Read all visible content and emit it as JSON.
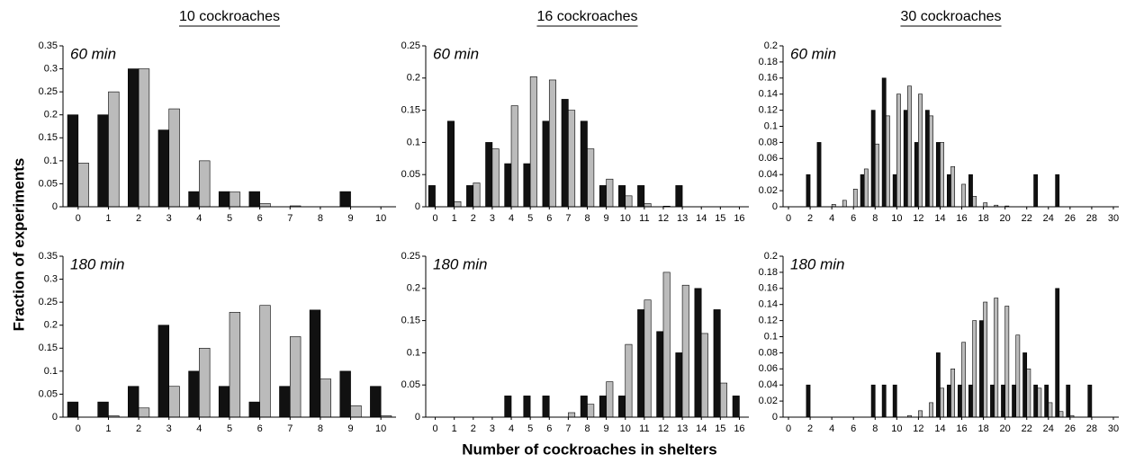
{
  "ylabel": "Fraction of experiments",
  "xlabel": "Number of cockroaches in shelters",
  "chart_data": [
    {
      "type": "bar",
      "title": "10 cockroaches",
      "annotation": "60 min",
      "x": [
        0,
        1,
        2,
        3,
        4,
        5,
        6,
        7,
        8,
        9,
        10
      ],
      "xlim": [
        -0.5,
        10.5
      ],
      "xticks": [
        0,
        1,
        2,
        3,
        4,
        5,
        6,
        7,
        8,
        9,
        10
      ],
      "ylim": [
        0,
        0.35
      ],
      "yticks": [
        0,
        0.05,
        0.1,
        0.15,
        0.2,
        0.25,
        0.3,
        0.35
      ],
      "series": [
        {
          "color": "#111111",
          "values": [
            0.2,
            0.2,
            0.3,
            0.167,
            0.033,
            0.033,
            0.033,
            0,
            0,
            0.033,
            0
          ]
        },
        {
          "color": "#bbbbbb",
          "values": [
            0.095,
            0.25,
            0.3,
            0.213,
            0.1,
            0.032,
            0.007,
            0.002,
            0,
            0,
            0
          ]
        }
      ]
    },
    {
      "type": "bar",
      "title": "16 cockroaches",
      "annotation": "60 min",
      "x": [
        0,
        1,
        2,
        3,
        4,
        5,
        6,
        7,
        8,
        9,
        10,
        11,
        12,
        13,
        14,
        15,
        16
      ],
      "xlim": [
        -0.5,
        16.5
      ],
      "xticks": [
        0,
        1,
        2,
        3,
        4,
        5,
        6,
        7,
        8,
        9,
        10,
        11,
        12,
        13,
        14,
        15,
        16
      ],
      "ylim": [
        0,
        0.25
      ],
      "yticks": [
        0,
        0.05,
        0.1,
        0.15,
        0.2,
        0.25
      ],
      "series": [
        {
          "color": "#111111",
          "values": [
            0.033,
            0.133,
            0.033,
            0.1,
            0.067,
            0.067,
            0.133,
            0.167,
            0.133,
            0.033,
            0.033,
            0.033,
            0,
            0.033,
            0,
            0,
            0
          ]
        },
        {
          "color": "#bbbbbb",
          "values": [
            0,
            0.008,
            0.037,
            0.09,
            0.157,
            0.202,
            0.197,
            0.15,
            0.09,
            0.043,
            0.017,
            0.005,
            0.001,
            0,
            0,
            0,
            0
          ]
        }
      ]
    },
    {
      "type": "bar",
      "title": "30 cockroaches",
      "annotation": "60 min",
      "x": [
        0,
        1,
        2,
        3,
        4,
        5,
        6,
        7,
        8,
        9,
        10,
        11,
        12,
        13,
        14,
        15,
        16,
        17,
        18,
        19,
        20,
        21,
        22,
        23,
        24,
        25,
        26,
        27,
        28,
        29,
        30
      ],
      "xlim": [
        -0.5,
        30.5
      ],
      "xticks": [
        0,
        2,
        4,
        6,
        8,
        10,
        12,
        14,
        16,
        18,
        20,
        22,
        24,
        26,
        28,
        30
      ],
      "ylim": [
        0,
        0.2
      ],
      "yticks": [
        0,
        0.02,
        0.04,
        0.06,
        0.08,
        0.1,
        0.12,
        0.14,
        0.16,
        0.18,
        0.2
      ],
      "series": [
        {
          "color": "#111111",
          "values": [
            0,
            0,
            0.04,
            0.08,
            0,
            0,
            0,
            0.04,
            0.12,
            0.16,
            0.04,
            0.12,
            0.08,
            0.12,
            0.08,
            0.04,
            0,
            0.04,
            0,
            0,
            0,
            0,
            0,
            0.04,
            0,
            0.04,
            0,
            0,
            0,
            0,
            0
          ]
        },
        {
          "color": "#bbbbbb",
          "values": [
            0,
            0,
            0,
            0,
            0.003,
            0.008,
            0.022,
            0.047,
            0.078,
            0.113,
            0.14,
            0.15,
            0.14,
            0.113,
            0.08,
            0.05,
            0.028,
            0.013,
            0.005,
            0.002,
            0.001,
            0,
            0,
            0,
            0,
            0,
            0,
            0,
            0,
            0,
            0
          ]
        }
      ]
    },
    {
      "type": "bar",
      "annotation": "180 min",
      "x": [
        0,
        1,
        2,
        3,
        4,
        5,
        6,
        7,
        8,
        9,
        10
      ],
      "xlim": [
        -0.5,
        10.5
      ],
      "xticks": [
        0,
        1,
        2,
        3,
        4,
        5,
        6,
        7,
        8,
        9,
        10
      ],
      "ylim": [
        0,
        0.35
      ],
      "yticks": [
        0,
        0.05,
        0.1,
        0.15,
        0.2,
        0.25,
        0.3,
        0.35
      ],
      "series": [
        {
          "color": "#111111",
          "values": [
            0.033,
            0.033,
            0.067,
            0.2,
            0.1,
            0.067,
            0.033,
            0.067,
            0.233,
            0.1,
            0.067
          ]
        },
        {
          "color": "#bbbbbb",
          "values": [
            0,
            0.003,
            0.02,
            0.067,
            0.15,
            0.228,
            0.243,
            0.175,
            0.083,
            0.025,
            0.003
          ]
        }
      ]
    },
    {
      "type": "bar",
      "annotation": "180 min",
      "x": [
        0,
        1,
        2,
        3,
        4,
        5,
        6,
        7,
        8,
        9,
        10,
        11,
        12,
        13,
        14,
        15,
        16
      ],
      "xlim": [
        -0.5,
        16.5
      ],
      "xticks": [
        0,
        1,
        2,
        3,
        4,
        5,
        6,
        7,
        8,
        9,
        10,
        11,
        12,
        13,
        14,
        15,
        16
      ],
      "ylim": [
        0,
        0.25
      ],
      "yticks": [
        0,
        0.05,
        0.1,
        0.15,
        0.2,
        0.25
      ],
      "series": [
        {
          "color": "#111111",
          "values": [
            0,
            0,
            0,
            0,
            0.033,
            0.033,
            0.033,
            0,
            0.033,
            0.033,
            0.033,
            0.167,
            0.133,
            0.1,
            0.2,
            0.167,
            0.033
          ]
        },
        {
          "color": "#bbbbbb",
          "values": [
            0,
            0,
            0,
            0,
            0,
            0,
            0,
            0.007,
            0.02,
            0.055,
            0.113,
            0.182,
            0.225,
            0.205,
            0.13,
            0.053,
            0
          ]
        }
      ]
    },
    {
      "type": "bar",
      "annotation": "180 min",
      "x": [
        0,
        1,
        2,
        3,
        4,
        5,
        6,
        7,
        8,
        9,
        10,
        11,
        12,
        13,
        14,
        15,
        16,
        17,
        18,
        19,
        20,
        21,
        22,
        23,
        24,
        25,
        26,
        27,
        28,
        29,
        30
      ],
      "xlim": [
        -0.5,
        30.5
      ],
      "xticks": [
        0,
        2,
        4,
        6,
        8,
        10,
        12,
        14,
        16,
        18,
        20,
        22,
        24,
        26,
        28,
        30
      ],
      "ylim": [
        0,
        0.2
      ],
      "yticks": [
        0,
        0.02,
        0.04,
        0.06,
        0.08,
        0.1,
        0.12,
        0.14,
        0.16,
        0.18,
        0.2
      ],
      "series": [
        {
          "color": "#111111",
          "values": [
            0,
            0,
            0.04,
            0,
            0,
            0,
            0,
            0,
            0.04,
            0.04,
            0.04,
            0,
            0,
            0,
            0.08,
            0.04,
            0.04,
            0.04,
            0.12,
            0.04,
            0.04,
            0.04,
            0.08,
            0.04,
            0.04,
            0.16,
            0.04,
            0,
            0.04,
            0,
            0
          ]
        },
        {
          "color": "#bbbbbb",
          "values": [
            0,
            0,
            0,
            0,
            0,
            0,
            0,
            0,
            0,
            0,
            0,
            0.002,
            0.008,
            0.018,
            0.036,
            0.06,
            0.093,
            0.12,
            0.143,
            0.148,
            0.138,
            0.102,
            0.06,
            0.036,
            0.018,
            0.007,
            0.002,
            0,
            0,
            0,
            0
          ]
        }
      ]
    }
  ]
}
